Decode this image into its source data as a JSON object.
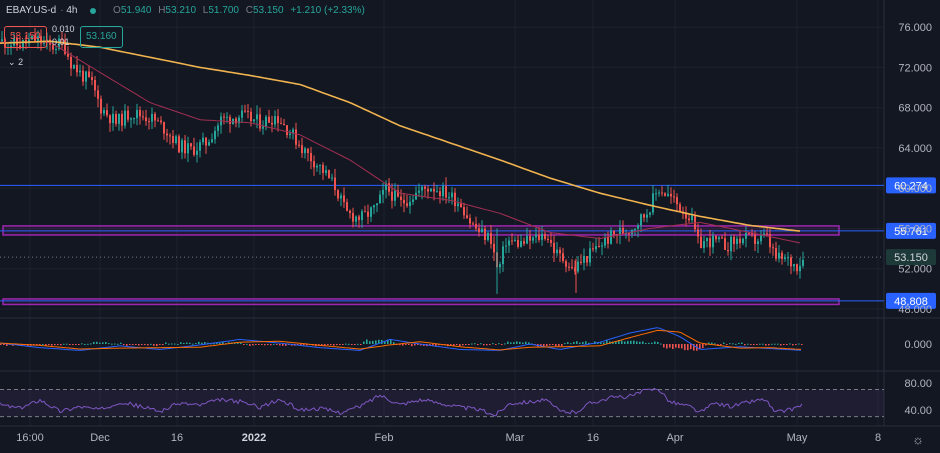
{
  "header": {
    "symbol": "EBAY.US-d",
    "interval": "4h",
    "open_label": "O",
    "open": "51.940",
    "high_label": "H",
    "high": "53.210",
    "low_label": "L",
    "low": "51.700",
    "close_label": "C",
    "close": "53.150",
    "change": "+1.210 (+2.33%)",
    "sell_price": "53.150",
    "buy_price": "53.160",
    "spread_top": "0.010",
    "spread_bottom": "0.01",
    "fold_count": "2"
  },
  "colors": {
    "background": "#131722",
    "up": "#26a69a",
    "down": "#ef5350",
    "ma_long": "#f0b34f",
    "ma_short": "#a32f52",
    "h_line": "#2962ff",
    "zone": "#9c27b0",
    "rsi": "#7e57c2",
    "macd_fast": "#2962ff",
    "macd_slow": "#ff6d00"
  },
  "chart_data": [
    {
      "type": "candlestick",
      "name": "price",
      "y_ticks": [
        "76.000",
        "72.000",
        "68.000",
        "64.000",
        "60.000",
        "56.000",
        "52.000",
        "48.000"
      ],
      "ylim": [
        47.7,
        77.5
      ],
      "x_ticks": [
        "16:00",
        "Dec",
        "16",
        "2022",
        "Feb",
        "Mar",
        "16",
        "Apr",
        "May",
        "8"
      ],
      "anchors": [
        [
          0,
          74.6
        ],
        [
          18,
          74.2
        ],
        [
          35,
          74.8
        ],
        [
          50,
          74.0
        ],
        [
          62,
          74.5
        ],
        [
          70,
          72.5
        ],
        [
          80,
          71.3
        ],
        [
          90,
          70.5
        ],
        [
          100,
          68.0
        ],
        [
          115,
          66.5
        ],
        [
          130,
          67.5
        ],
        [
          150,
          67.0
        ],
        [
          165,
          65.8
        ],
        [
          178,
          64.2
        ],
        [
          190,
          63.8
        ],
        [
          205,
          64.5
        ],
        [
          220,
          66.8
        ],
        [
          240,
          67.2
        ],
        [
          260,
          66.5
        ],
        [
          275,
          67.2
        ],
        [
          290,
          65.5
        ],
        [
          305,
          63.5
        ],
        [
          320,
          62.0
        ],
        [
          335,
          60.0
        ],
        [
          345,
          57.5
        ],
        [
          360,
          57.0
        ],
        [
          375,
          58.0
        ],
        [
          385,
          60.0
        ],
        [
          400,
          58.5
        ],
        [
          415,
          59.5
        ],
        [
          430,
          60.2
        ],
        [
          445,
          59.5
        ],
        [
          460,
          58.5
        ],
        [
          470,
          56.5
        ],
        [
          480,
          55.5
        ],
        [
          490,
          55.0
        ],
        [
          497,
          51.5
        ],
        [
          505,
          54.8
        ],
        [
          520,
          54.5
        ],
        [
          535,
          55.0
        ],
        [
          545,
          55.5
        ],
        [
          555,
          53.5
        ],
        [
          565,
          52.8
        ],
        [
          572,
          51.8
        ],
        [
          580,
          52.7
        ],
        [
          590,
          53.5
        ],
        [
          600,
          54.5
        ],
        [
          615,
          55.5
        ],
        [
          630,
          56.0
        ],
        [
          645,
          57.5
        ],
        [
          658,
          60.0
        ],
        [
          668,
          59.2
        ],
        [
          680,
          58.0
        ],
        [
          690,
          57.0
        ],
        [
          697,
          54.5
        ],
        [
          710,
          54.8
        ],
        [
          725,
          54.3
        ],
        [
          740,
          55.0
        ],
        [
          755,
          54.8
        ],
        [
          765,
          55.2
        ],
        [
          775,
          53.0
        ],
        [
          785,
          52.9
        ],
        [
          795,
          52.3
        ],
        [
          803,
          53.15
        ]
      ],
      "ma_long_anchors": [
        [
          0,
          74.4
        ],
        [
          50,
          74.6
        ],
        [
          100,
          74.0
        ],
        [
          150,
          73.0
        ],
        [
          200,
          72.0
        ],
        [
          250,
          71.2
        ],
        [
          300,
          70.3
        ],
        [
          350,
          68.5
        ],
        [
          400,
          66.2
        ],
        [
          450,
          64.5
        ],
        [
          500,
          62.8
        ],
        [
          550,
          61.0
        ],
        [
          600,
          59.5
        ],
        [
          650,
          58.3
        ],
        [
          700,
          57.2
        ],
        [
          750,
          56.3
        ],
        [
          803,
          55.7
        ]
      ],
      "ma_short_anchors": [
        [
          0,
          74.5
        ],
        [
          50,
          74.5
        ],
        [
          100,
          71.5
        ],
        [
          150,
          68.5
        ],
        [
          200,
          66.8
        ],
        [
          250,
          66.5
        ],
        [
          300,
          65.3
        ],
        [
          350,
          62.8
        ],
        [
          400,
          59.5
        ],
        [
          450,
          58.8
        ],
        [
          500,
          57.5
        ],
        [
          550,
          55.6
        ],
        [
          600,
          55.0
        ],
        [
          650,
          56.0
        ],
        [
          700,
          56.6
        ],
        [
          750,
          55.6
        ],
        [
          803,
          54.5
        ]
      ],
      "horizontal_lines": [
        {
          "value": 60.274,
          "label": "60.274"
        },
        {
          "value": 55.761,
          "label": "55.761"
        },
        {
          "value": 48.808,
          "label": "48.808"
        }
      ],
      "zones": [
        {
          "from": 55.35,
          "to": 56.25
        },
        {
          "from": 48.45,
          "to": 49.0
        }
      ],
      "last_price": {
        "value": 53.15,
        "label": "53.150"
      }
    },
    {
      "type": "histogram+line",
      "name": "macd",
      "y_ticks": [
        "0.000"
      ],
      "ylim": [
        -1.2,
        1.2
      ],
      "anchors": [
        [
          0,
          0.05
        ],
        [
          40,
          -0.2
        ],
        [
          80,
          -0.35
        ],
        [
          120,
          -0.1
        ],
        [
          160,
          -0.3
        ],
        [
          200,
          -0.05
        ],
        [
          240,
          0.25
        ],
        [
          280,
          0.05
        ],
        [
          320,
          -0.2
        ],
        [
          360,
          -0.35
        ],
        [
          390,
          0.25
        ],
        [
          420,
          0.0
        ],
        [
          460,
          -0.3
        ],
        [
          500,
          -0.35
        ],
        [
          530,
          0.0
        ],
        [
          560,
          -0.3
        ],
        [
          600,
          0.1
        ],
        [
          630,
          0.6
        ],
        [
          658,
          0.9
        ],
        [
          680,
          0.4
        ],
        [
          700,
          -0.3
        ],
        [
          740,
          -0.15
        ],
        [
          770,
          -0.25
        ],
        [
          803,
          -0.35
        ]
      ]
    },
    {
      "type": "line",
      "name": "rsi",
      "y_ticks": [
        "80.00",
        "40.00"
      ],
      "ylim": [
        25,
        90
      ],
      "band": [
        70,
        30
      ],
      "anchors": [
        [
          0,
          48
        ],
        [
          20,
          42
        ],
        [
          40,
          55
        ],
        [
          60,
          38
        ],
        [
          80,
          45
        ],
        [
          100,
          40
        ],
        [
          120,
          52
        ],
        [
          140,
          45
        ],
        [
          160,
          38
        ],
        [
          180,
          50
        ],
        [
          200,
          47
        ],
        [
          220,
          55
        ],
        [
          240,
          52
        ],
        [
          260,
          44
        ],
        [
          280,
          55
        ],
        [
          300,
          40
        ],
        [
          320,
          42
        ],
        [
          340,
          36
        ],
        [
          360,
          45
        ],
        [
          380,
          62
        ],
        [
          400,
          48
        ],
        [
          420,
          55
        ],
        [
          440,
          50
        ],
        [
          460,
          44
        ],
        [
          480,
          40
        ],
        [
          495,
          32
        ],
        [
          510,
          50
        ],
        [
          530,
          52
        ],
        [
          545,
          55
        ],
        [
          560,
          38
        ],
        [
          575,
          36
        ],
        [
          590,
          50
        ],
        [
          610,
          58
        ],
        [
          630,
          60
        ],
        [
          645,
          68
        ],
        [
          658,
          72
        ],
        [
          670,
          52
        ],
        [
          690,
          45
        ],
        [
          700,
          36
        ],
        [
          715,
          50
        ],
        [
          730,
          45
        ],
        [
          750,
          52
        ],
        [
          765,
          56
        ],
        [
          775,
          36
        ],
        [
          790,
          40
        ],
        [
          803,
          48
        ]
      ]
    }
  ]
}
